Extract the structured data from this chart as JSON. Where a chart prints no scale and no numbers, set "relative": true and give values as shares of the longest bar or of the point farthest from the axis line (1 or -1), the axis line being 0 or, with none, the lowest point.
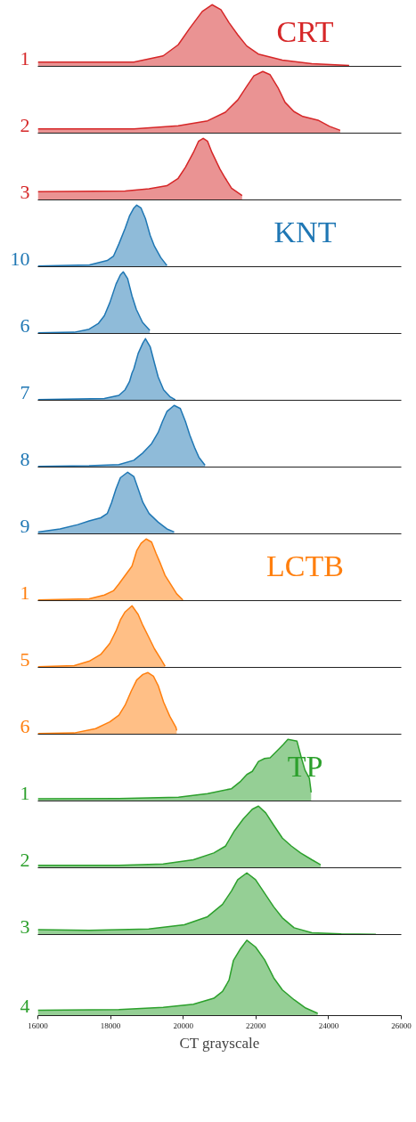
{
  "chart_data": [
    {
      "type": "area",
      "relative": true,
      "xlim": [
        16000,
        26000
      ],
      "tick_labels": false,
      "annotations": [
        "CRT"
      ],
      "x": [
        16000,
        17413,
        18638,
        19446,
        19862,
        20180,
        20523,
        20792,
        21037,
        21258,
        21503,
        21748,
        22066,
        22727,
        23535,
        24564
      ],
      "series": [
        {
          "name": "1",
          "color": "#d62728",
          "values": [
            0.07,
            0.07,
            0.07,
            0.17,
            0.35,
            0.62,
            0.89,
            1,
            0.92,
            0.71,
            0.51,
            0.33,
            0.2,
            0.1,
            0.045,
            0.016
          ]
        }
      ]
    },
    {
      "type": "area",
      "relative": true,
      "xlim": [
        16000,
        26000
      ],
      "tick_labels": false,
      "x": [
        16000,
        18638,
        19862,
        20670,
        21160,
        21503,
        21748,
        21944,
        22189,
        22385,
        22605,
        22801,
        23046,
        23291,
        23707,
        24025,
        24319
      ],
      "series": [
        {
          "name": "2",
          "color": "#d62728",
          "values": [
            0.068,
            0.068,
            0.12,
            0.2,
            0.34,
            0.54,
            0.76,
            0.93,
            1,
            0.95,
            0.74,
            0.5,
            0.35,
            0.27,
            0.21,
            0.11,
            0.045
          ]
        }
      ]
    },
    {
      "type": "area",
      "relative": true,
      "xlim": [
        16000,
        26000
      ],
      "tick_labels": false,
      "x": [
        16000,
        18400,
        19060,
        19550,
        19860,
        20060,
        20280,
        20420,
        20550,
        20670,
        20790,
        21010,
        21160,
        21330,
        21620
      ],
      "series": [
        {
          "name": "3",
          "color": "#d62728",
          "values": [
            0.134,
            0.145,
            0.18,
            0.23,
            0.35,
            0.53,
            0.77,
            0.95,
            1,
            0.95,
            0.77,
            0.5,
            0.35,
            0.19,
            0.07
          ]
        }
      ]
    },
    {
      "type": "area",
      "relative": true,
      "xlim": [
        16000,
        26000
      ],
      "tick_labels": false,
      "annotations": [
        "KNT"
      ],
      "x": [
        16000,
        17420,
        17910,
        18080,
        18230,
        18400,
        18520,
        18640,
        18720,
        18840,
        18960,
        19090,
        19210,
        19380,
        19550
      ],
      "series": [
        {
          "name": "10",
          "color": "#1f77b4",
          "values": [
            0.01,
            0.03,
            0.1,
            0.17,
            0.37,
            0.62,
            0.82,
            0.95,
            1,
            0.95,
            0.78,
            0.51,
            0.33,
            0.15,
            0.02
          ]
        }
      ]
    },
    {
      "type": "area",
      "relative": true,
      "xlim": [
        16000,
        26000
      ],
      "tick_labels": false,
      "x": [
        16000,
        17000,
        17410,
        17660,
        17830,
        17980,
        18150,
        18270,
        18350,
        18470,
        18590,
        18710,
        18880,
        19080
      ],
      "series": [
        {
          "name": "6",
          "color": "#1f77b4",
          "values": [
            0.01,
            0.02,
            0.07,
            0.16,
            0.29,
            0.5,
            0.8,
            0.95,
            1,
            0.89,
            0.61,
            0.39,
            0.18,
            0.05
          ]
        }
      ]
    },
    {
      "type": "area",
      "relative": true,
      "xlim": [
        16000,
        26000
      ],
      "tick_labels": false,
      "x": [
        16000,
        17830,
        18230,
        18400,
        18520,
        18590,
        18640,
        18760,
        18890,
        18960,
        19090,
        19210,
        19310,
        19460,
        19630,
        19780
      ],
      "series": [
        {
          "name": "7",
          "color": "#1f77b4",
          "values": [
            0.01,
            0.03,
            0.08,
            0.17,
            0.3,
            0.44,
            0.51,
            0.76,
            0.93,
            1,
            0.87,
            0.6,
            0.38,
            0.17,
            0.06,
            0.01
          ]
        }
      ]
    },
    {
      "type": "area",
      "relative": true,
      "xlim": [
        16000,
        26000
      ],
      "tick_labels": false,
      "x": [
        16000,
        17410,
        18230,
        18640,
        18890,
        19130,
        19310,
        19430,
        19550,
        19750,
        19920,
        20060,
        20180,
        20310,
        20430,
        20600
      ],
      "series": [
        {
          "name": "8",
          "color": "#1f77b4",
          "values": [
            0.01,
            0.02,
            0.04,
            0.11,
            0.23,
            0.38,
            0.56,
            0.74,
            0.9,
            1,
            0.95,
            0.74,
            0.52,
            0.32,
            0.16,
            0.03
          ]
        }
      ]
    },
    {
      "type": "area",
      "relative": true,
      "xlim": [
        16000,
        26000
      ],
      "tick_labels": false,
      "x": [
        16000,
        16610,
        17100,
        17410,
        17730,
        17910,
        18030,
        18150,
        18270,
        18470,
        18640,
        18760,
        18890,
        19060,
        19310,
        19550,
        19750
      ],
      "series": [
        {
          "name": "9",
          "color": "#1f77b4",
          "values": [
            0.03,
            0.08,
            0.15,
            0.21,
            0.26,
            0.33,
            0.51,
            0.73,
            0.91,
            1,
            0.93,
            0.73,
            0.51,
            0.33,
            0.19,
            0.08,
            0.03
          ]
        }
      ]
    },
    {
      "type": "area",
      "relative": true,
      "xlim": [
        16000,
        26000
      ],
      "tick_labels": false,
      "annotations": [
        "LCTB"
      ],
      "x": [
        16000,
        17410,
        17830,
        18080,
        18230,
        18590,
        18720,
        18840,
        18980,
        19130,
        19250,
        19380,
        19500,
        19670,
        19820,
        19990
      ],
      "series": [
        {
          "name": "1",
          "color": "#ff7f0e",
          "values": [
            0.01,
            0.03,
            0.09,
            0.16,
            0.27,
            0.56,
            0.81,
            0.93,
            1,
            0.95,
            0.77,
            0.59,
            0.41,
            0.25,
            0.11,
            0.01
          ]
        }
      ]
    },
    {
      "type": "area",
      "relative": true,
      "xlim": [
        16000,
        26000
      ],
      "tick_labels": false,
      "x": [
        16000,
        17000,
        17410,
        17730,
        17980,
        18150,
        18270,
        18400,
        18590,
        18760,
        18890,
        19060,
        19210,
        19380,
        19500
      ],
      "series": [
        {
          "name": "5",
          "color": "#ff7f0e",
          "values": [
            0.01,
            0.03,
            0.1,
            0.21,
            0.39,
            0.59,
            0.77,
            0.9,
            1,
            0.86,
            0.68,
            0.48,
            0.3,
            0.14,
            0.02
          ]
        }
      ]
    },
    {
      "type": "area",
      "relative": true,
      "xlim": [
        16000,
        26000
      ],
      "tick_labels": false,
      "x": [
        16000,
        17000,
        17590,
        17980,
        18230,
        18400,
        18570,
        18720,
        18890,
        19030,
        19180,
        19310,
        19460,
        19630,
        19800,
        19820
      ],
      "series": [
        {
          "name": "6",
          "color": "#ff7f0e",
          "values": [
            0.01,
            0.02,
            0.09,
            0.2,
            0.31,
            0.47,
            0.7,
            0.88,
            0.97,
            1,
            0.94,
            0.79,
            0.52,
            0.29,
            0.11,
            0.06
          ]
        }
      ]
    },
    {
      "type": "area",
      "relative": true,
      "xlim": [
        16000,
        26000
      ],
      "tick_labels": false,
      "annotations": [
        "TP"
      ],
      "x": [
        16000,
        18230,
        19870,
        20670,
        21330,
        21580,
        21750,
        21900,
        22070,
        22240,
        22390,
        22610,
        22760,
        22880,
        23130,
        23250,
        23350,
        23470,
        23520
      ],
      "series": [
        {
          "name": "1",
          "color": "#2ca02c",
          "values": [
            0.035,
            0.04,
            0.06,
            0.12,
            0.2,
            0.32,
            0.43,
            0.48,
            0.64,
            0.69,
            0.7,
            0.83,
            0.92,
            1,
            0.97,
            0.7,
            0.5,
            0.37,
            0.14
          ]
        }
      ]
    },
    {
      "type": "area",
      "relative": true,
      "xlim": [
        16000,
        26000
      ],
      "tick_labels": false,
      "x": [
        16000,
        18230,
        19450,
        20280,
        20840,
        21160,
        21410,
        21650,
        21900,
        22070,
        22270,
        22490,
        22730,
        22980,
        23230,
        23540,
        23780
      ],
      "series": [
        {
          "name": "2",
          "color": "#2ca02c",
          "values": [
            0.04,
            0.04,
            0.06,
            0.13,
            0.24,
            0.35,
            0.6,
            0.79,
            0.95,
            1,
            0.89,
            0.69,
            0.48,
            0.35,
            0.24,
            0.13,
            0.05
          ]
        }
      ]
    },
    {
      "type": "area",
      "relative": true,
      "xlim": [
        16000,
        26000
      ],
      "tick_labels": false,
      "x": [
        16000,
        17410,
        19050,
        20030,
        20670,
        21080,
        21330,
        21500,
        21750,
        21990,
        22240,
        22490,
        22730,
        23050,
        23540,
        24350,
        25300
      ],
      "series": [
        {
          "name": "3",
          "color": "#2ca02c",
          "values": [
            0.08,
            0.07,
            0.09,
            0.16,
            0.29,
            0.49,
            0.71,
            0.89,
            1,
            0.89,
            0.67,
            0.45,
            0.27,
            0.11,
            0.03,
            0.01,
            0.004
          ]
        }
      ]
    },
    {
      "type": "area",
      "relative": true,
      "xlim": [
        16000,
        26000
      ],
      "xticks": [
        16000,
        18000,
        20000,
        22000,
        24000,
        26000
      ],
      "tick_labels": "x",
      "xlabel": "CT grayscale",
      "x": [
        16000,
        18230,
        19450,
        20280,
        20840,
        21080,
        21260,
        21380,
        21580,
        21750,
        21990,
        22240,
        22490,
        22730,
        23050,
        23370,
        23700
      ],
      "series": [
        {
          "name": "4",
          "color": "#2ca02c",
          "values": [
            0.07,
            0.08,
            0.11,
            0.15,
            0.23,
            0.32,
            0.47,
            0.73,
            0.89,
            1,
            0.91,
            0.74,
            0.5,
            0.34,
            0.21,
            0.1,
            0.03
          ]
        }
      ]
    }
  ]
}
